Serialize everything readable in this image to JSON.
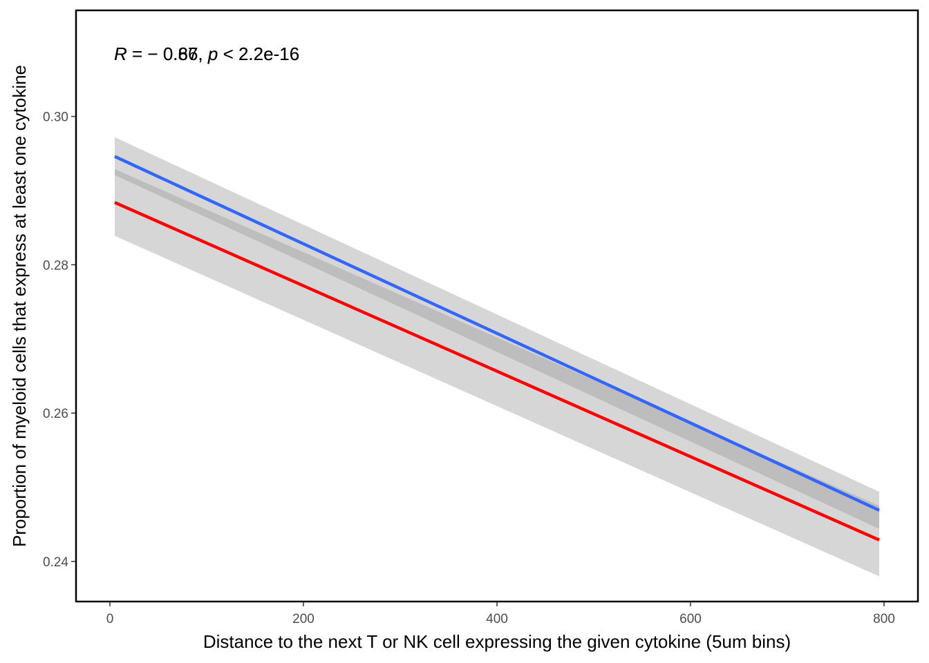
{
  "chart_data": {
    "type": "line",
    "title": "",
    "xlabel": "Distance to the next T or NK cell expressing the given cytokine (5um bins)",
    "ylabel": "Proportion of myeloid cells that express at least one cytokine",
    "xlim": [
      -35,
      835
    ],
    "ylim": [
      0.2346,
      0.3143
    ],
    "x_ticks": [
      0,
      200,
      400,
      600,
      800
    ],
    "x_tick_labels": [
      "0",
      "200",
      "400",
      "600",
      "800"
    ],
    "y_ticks": [
      0.24,
      0.26,
      0.28,
      0.3
    ],
    "y_tick_labels": [
      "0.24",
      "0.26",
      "0.28",
      "0.30"
    ],
    "grid": false,
    "legend": "none",
    "series": [
      {
        "color": "#ff0000",
        "x": [
          5,
          795
        ],
        "y": [
          0.2884,
          0.2429
        ],
        "ci_lower": [
          0.2839,
          0.238
        ],
        "ci_upper": [
          0.2929,
          0.2475
        ],
        "annotation_prefix": "R",
        "annotation_value": " = − 0.87, ",
        "annotation_p": "p",
        "annotation_suffix": " < 2.2e-16"
      },
      {
        "color": "#3366ff",
        "x": [
          5,
          795
        ],
        "y": [
          0.2946,
          0.2469
        ],
        "ci_lower": [
          0.2921,
          0.2444
        ],
        "ci_upper": [
          0.2972,
          0.2494
        ],
        "annotation_prefix": "R",
        "annotation_value": " = − 0.66, ",
        "annotation_p": "p",
        "annotation_suffix": " < 2.2e-16"
      }
    ],
    "ci_color": "#999999"
  }
}
